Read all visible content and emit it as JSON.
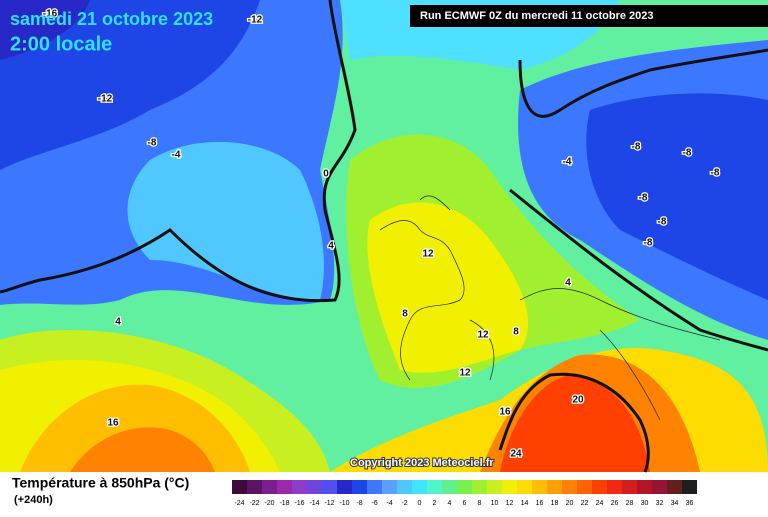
{
  "header": {
    "date": "samedi 21 octobre 2023",
    "time": "2:00 locale",
    "run": "Run ECMWF 0Z du mercredi 11 octobre 2023"
  },
  "map": {
    "contour_labels": [
      -16,
      -12,
      -12,
      -8,
      -4,
      0,
      4,
      4,
      8,
      12,
      12,
      8,
      4,
      12,
      16,
      16,
      20,
      24,
      -4,
      -8,
      -8,
      -8,
      -8,
      -8,
      -8
    ]
  },
  "copyright": "Copyright 2023 Meteociel.fr",
  "legend": {
    "title": "Température à 850hPa (°C)",
    "lead": "(+240h)",
    "scale": [
      -24,
      -22,
      -20,
      -18,
      -16,
      -14,
      -12,
      -10,
      -8,
      -6,
      -4,
      -2,
      0,
      2,
      4,
      6,
      8,
      10,
      12,
      14,
      16,
      18,
      20,
      22,
      24,
      26,
      28,
      30,
      32,
      34,
      36
    ],
    "colors": [
      "#3c0a3c",
      "#5a1464",
      "#7a1e8c",
      "#9a28aa",
      "#8c3cc8",
      "#6e46dc",
      "#5050f0",
      "#2828c8",
      "#1e46e6",
      "#3c78ff",
      "#5aa0ff",
      "#50c8ff",
      "#40e6ff",
      "#50f5c8",
      "#60f090",
      "#78f050",
      "#a0f030",
      "#c8f020",
      "#f0f000",
      "#ffdc00",
      "#ffbe00",
      "#ffa000",
      "#ff8200",
      "#ff6400",
      "#ff4000",
      "#f02814",
      "#d21e1e",
      "#b41428",
      "#961432",
      "#641e1e",
      "#1e1e1e"
    ]
  }
}
